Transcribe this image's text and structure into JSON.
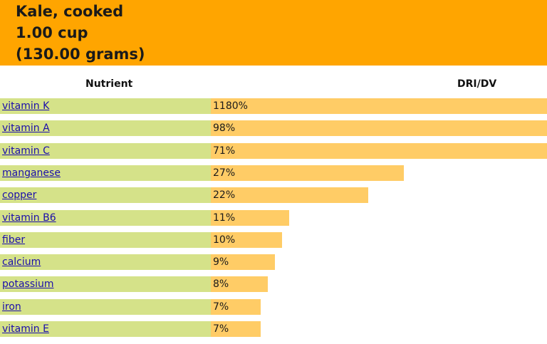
{
  "header": {
    "food": "Kale, cooked",
    "serving": "1.00 cup",
    "weight": "(130.00 grams)",
    "background_color": "#FFA500"
  },
  "columns": {
    "nutrient": "Nutrient",
    "dri": "DRI/DV"
  },
  "colors": {
    "name_cell": "#D5E289",
    "bar": "#FFCC66",
    "link": "#1a0dab"
  },
  "chart_data": {
    "type": "bar",
    "orientation": "horizontal",
    "categories": [
      "vitamin K",
      "vitamin A",
      "vitamin C",
      "manganese",
      "copper",
      "vitamin B6",
      "fiber",
      "calcium",
      "potassium",
      "iron",
      "vitamin E"
    ],
    "values": [
      1180,
      98,
      71,
      27,
      22,
      11,
      10,
      9,
      8,
      7,
      7
    ],
    "labels": [
      "1180%",
      "98%",
      "71%",
      "27%",
      "22%",
      "11%",
      "10%",
      "9%",
      "8%",
      "7%",
      "7%"
    ],
    "unit": "%",
    "bar_cap_percent": 47
  }
}
